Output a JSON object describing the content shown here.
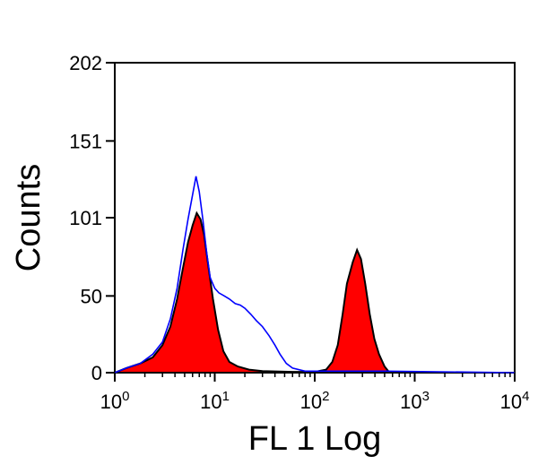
{
  "chart_data": {
    "type": "area",
    "xlabel": "FL 1 Log",
    "ylabel": "Counts",
    "x_scale": "log",
    "xlim": [
      1,
      10000
    ],
    "ylim": [
      0,
      202
    ],
    "x_ticks": [
      {
        "value": 1,
        "base": "10",
        "exp": "0"
      },
      {
        "value": 10,
        "base": "10",
        "exp": "1"
      },
      {
        "value": 100,
        "base": "10",
        "exp": "2"
      },
      {
        "value": 1000,
        "base": "10",
        "exp": "3"
      },
      {
        "value": 10000,
        "base": "10",
        "exp": "4"
      }
    ],
    "y_ticks": [
      {
        "value": 0,
        "label": "0"
      },
      {
        "value": 50,
        "label": "50"
      },
      {
        "value": 101,
        "label": "101"
      },
      {
        "value": 151,
        "label": "151"
      },
      {
        "value": 202,
        "label": "202"
      }
    ],
    "grid": false,
    "series": [
      {
        "color": "#ff0000",
        "outline": "#000000",
        "style": "filled",
        "points": [
          [
            1,
            0
          ],
          [
            1.3,
            3
          ],
          [
            1.8,
            6
          ],
          [
            2.4,
            10
          ],
          [
            3,
            18
          ],
          [
            3.6,
            30
          ],
          [
            4.2,
            48
          ],
          [
            4.8,
            68
          ],
          [
            5.4,
            85
          ],
          [
            6,
            96
          ],
          [
            6.6,
            104
          ],
          [
            7.2,
            100
          ],
          [
            7.8,
            90
          ],
          [
            8.6,
            70
          ],
          [
            9.6,
            48
          ],
          [
            10.8,
            28
          ],
          [
            12.2,
            14
          ],
          [
            14,
            7
          ],
          [
            17,
            4
          ],
          [
            22,
            2
          ],
          [
            30,
            1
          ],
          [
            60,
            0.5
          ],
          [
            100,
            0.5
          ],
          [
            130,
            2
          ],
          [
            150,
            7
          ],
          [
            170,
            18
          ],
          [
            190,
            38
          ],
          [
            210,
            58
          ],
          [
            240,
            72
          ],
          [
            265,
            80
          ],
          [
            290,
            74
          ],
          [
            320,
            58
          ],
          [
            355,
            38
          ],
          [
            395,
            22
          ],
          [
            440,
            12
          ],
          [
            500,
            4
          ],
          [
            560,
            0
          ],
          [
            10000,
            0
          ]
        ]
      },
      {
        "color": "#0000ff",
        "style": "line",
        "points": [
          [
            1,
            0
          ],
          [
            1.3,
            3
          ],
          [
            1.8,
            6
          ],
          [
            2.4,
            12
          ],
          [
            3,
            20
          ],
          [
            3.6,
            35
          ],
          [
            4.2,
            55
          ],
          [
            4.8,
            80
          ],
          [
            5.4,
            100
          ],
          [
            6,
            116
          ],
          [
            6.5,
            128
          ],
          [
            7,
            118
          ],
          [
            7.6,
            100
          ],
          [
            8.3,
            78
          ],
          [
            9,
            62
          ],
          [
            10,
            55
          ],
          [
            11,
            52
          ],
          [
            12.5,
            50
          ],
          [
            14,
            48
          ],
          [
            16,
            45
          ],
          [
            18,
            44
          ],
          [
            20,
            42
          ],
          [
            23,
            38
          ],
          [
            26,
            34
          ],
          [
            30,
            30
          ],
          [
            35,
            24
          ],
          [
            40,
            18
          ],
          [
            45,
            12
          ],
          [
            52,
            6
          ],
          [
            60,
            3
          ],
          [
            80,
            1
          ],
          [
            100,
            1
          ],
          [
            150,
            1
          ],
          [
            300,
            1
          ],
          [
            500,
            1
          ],
          [
            10000,
            0
          ]
        ]
      }
    ]
  }
}
